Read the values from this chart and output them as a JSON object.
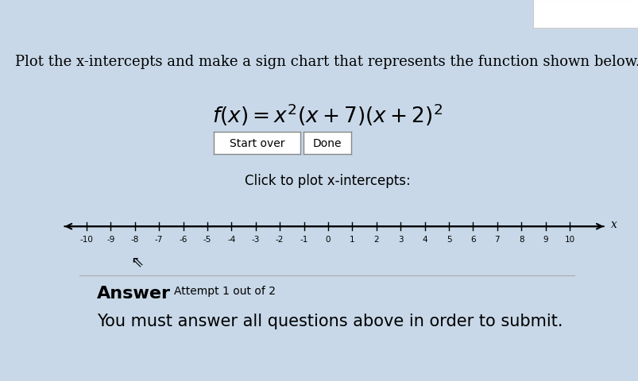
{
  "background_color": "#c8d8e8",
  "title_text": "Plot the x-intercepts and make a sign chart that represents the function shown below.",
  "button1_text": "Start over",
  "button2_text": "Done",
  "click_text": "Click to plot x-intercepts:",
  "answer_text": "Answer",
  "attempt_text": "Attempt 1 out of 2",
  "submit_text": "You must answer all questions above in order to submit.",
  "number_line_ticks": [
    -10,
    -9,
    -8,
    -7,
    -6,
    -5,
    -4,
    -3,
    -2,
    -1,
    0,
    1,
    2,
    3,
    4,
    5,
    6,
    7,
    8,
    9,
    10
  ],
  "title_fontsize": 13,
  "function_fontsize": 19,
  "button_fontsize": 10,
  "click_fontsize": 12,
  "answer_fontsize": 16,
  "attempt_fontsize": 10,
  "submit_fontsize": 15,
  "tick_fontsize": 7.5
}
